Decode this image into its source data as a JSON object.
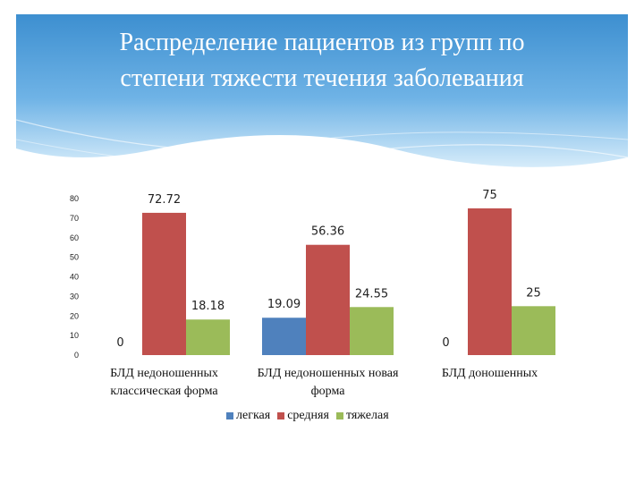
{
  "slide": {
    "title_lines": [
      "Распределение пациентов из групп  по",
      "степени тяжести течения заболевания"
    ]
  },
  "chart_data": {
    "type": "bar",
    "categories": [
      [
        "БЛД недоношенных",
        "классическая форма"
      ],
      [
        "БЛД недоношенных новая",
        "форма"
      ],
      [
        "БЛД доношенных"
      ]
    ],
    "series": [
      {
        "name": "легкая",
        "color": "#4f81bd",
        "values": [
          0,
          19.09,
          0
        ],
        "labels": [
          "0",
          "19.09",
          "0"
        ]
      },
      {
        "name": "средняя",
        "color": "#c0504d",
        "values": [
          72.72,
          56.36,
          75
        ],
        "labels": [
          "72.72",
          "56.36",
          "75"
        ]
      },
      {
        "name": "тяжелая",
        "color": "#9bbb59",
        "values": [
          18.18,
          24.55,
          25
        ],
        "labels": [
          "18.18",
          "24.55",
          "25"
        ]
      }
    ],
    "yticks": [
      0,
      10,
      20,
      30,
      40,
      50,
      60,
      70,
      80
    ],
    "ylim": [
      0,
      80
    ],
    "grid": false,
    "legend_position": "bottom"
  }
}
